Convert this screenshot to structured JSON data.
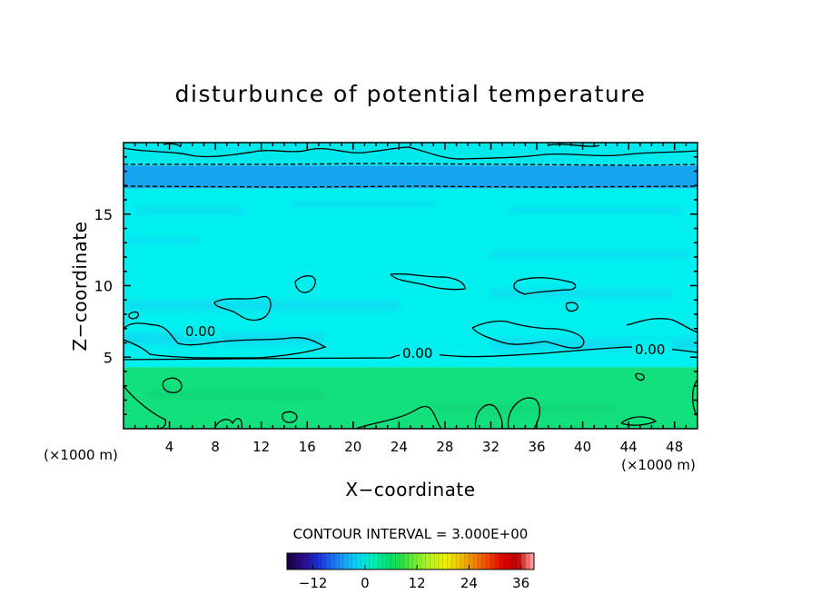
{
  "chart_data": {
    "type": "heatmap",
    "title": "disturbunce of potential temperature",
    "xlabel": "X−coordinate",
    "ylabel": "Z−coordinate",
    "x_unit": "(×1000 m)",
    "y_unit": "(×1000 m)",
    "xlim": [
      0,
      50
    ],
    "ylim": [
      0,
      20
    ],
    "x_ticks": [
      4,
      8,
      12,
      16,
      20,
      24,
      28,
      32,
      36,
      40,
      44,
      48
    ],
    "y_ticks": [
      5,
      10,
      15
    ],
    "x_ticks_labels": [
      "4",
      "8",
      "12",
      "16",
      "20",
      "24",
      "28",
      "32",
      "36",
      "40",
      "44",
      "48"
    ],
    "y_ticks_labels": [
      "5",
      "10",
      "15"
    ],
    "grid": false,
    "contour_interval_text": "CONTOUR INTERVAL = 3.000E+00",
    "zero_contour_labels": [
      "0.00",
      "0.00",
      "0.00"
    ],
    "layers": [
      {
        "z": [
          0,
          4.3
        ],
        "value": 3,
        "color": "#12e07c"
      },
      {
        "z": [
          4.3,
          16.8
        ],
        "value": 0,
        "color": "#00f0f0"
      },
      {
        "z": [
          16.8,
          18.4
        ],
        "value": -3,
        "color": "#14a6f0"
      },
      {
        "z": [
          18.4,
          20
        ],
        "value": 0,
        "color": "#00eaee"
      }
    ],
    "colorbar": {
      "range": [
        -18,
        39
      ],
      "ticks": [
        -12,
        0,
        12,
        24,
        36
      ],
      "tick_labels": [
        "−12",
        "0",
        "12",
        "24",
        "36"
      ],
      "colors": [
        "#1b004a",
        "#2a0c8c",
        "#1a2cd6",
        "#1f6cf0",
        "#17acf5",
        "#00e0f0",
        "#00f0b0",
        "#00e070",
        "#30e040",
        "#80f030",
        "#c0f020",
        "#f0f000",
        "#f0c000",
        "#f08000",
        "#f04000",
        "#e00000",
        "#c00000",
        "#ff9898"
      ]
    }
  }
}
